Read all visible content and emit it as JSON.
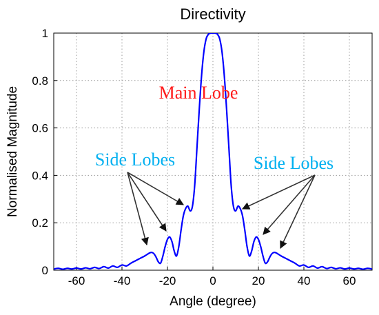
{
  "colors": {
    "series": "#0000ff",
    "main_lobe_label": "#ff1a1a",
    "side_lobe_label": "#00b0f0",
    "arrow": "#333333"
  },
  "chart_data": {
    "type": "line",
    "title": "Directivity",
    "xlabel": "Angle (degree)",
    "ylabel": "Normalised Magnitude",
    "xlim": [
      -70,
      70
    ],
    "ylim": [
      0,
      1
    ],
    "grid": true,
    "xticks": [
      -60,
      -40,
      -20,
      0,
      20,
      40,
      60
    ],
    "yticks": [
      0,
      0.2,
      0.4,
      0.6,
      0.8,
      1
    ],
    "xtick_labels": [
      "-60",
      "-40",
      "-20",
      "0",
      "20",
      "40",
      "60"
    ],
    "ytick_labels": [
      "0",
      "0.2",
      "0.4",
      "0.6",
      "0.8",
      "1"
    ],
    "series": [
      {
        "x": [
          -70,
          -68,
          -66,
          -64,
          -62,
          -60,
          -58,
          -56,
          -54,
          -52,
          -50,
          -48,
          -46,
          -44,
          -42,
          -40,
          -38,
          -36,
          -34,
          -32,
          -30,
          -28,
          -27,
          -26,
          -25,
          -24,
          -23,
          -22,
          -21,
          -20,
          -19,
          -18,
          -17,
          -16,
          -15,
          -14,
          -13,
          -12,
          -11,
          -10,
          -9,
          -8,
          -7,
          -6,
          -5,
          -4,
          -3,
          -2,
          -1,
          0,
          1,
          2,
          3,
          4,
          5,
          6,
          7,
          8,
          9,
          10,
          11,
          12,
          13,
          14,
          15,
          16,
          17,
          18,
          19,
          20,
          21,
          22,
          23,
          24,
          25,
          26,
          27,
          28,
          30,
          32,
          34,
          36,
          38,
          40,
          42,
          44,
          46,
          48,
          50,
          52,
          54,
          56,
          58,
          60,
          62,
          64,
          66,
          68,
          70
        ],
        "y": [
          0.005,
          0.008,
          0.004,
          0.008,
          0.005,
          0.009,
          0.005,
          0.01,
          0.006,
          0.012,
          0.007,
          0.015,
          0.009,
          0.018,
          0.012,
          0.022,
          0.018,
          0.03,
          0.04,
          0.05,
          0.06,
          0.072,
          0.075,
          0.07,
          0.055,
          0.035,
          0.03,
          0.06,
          0.1,
          0.13,
          0.14,
          0.12,
          0.08,
          0.06,
          0.1,
          0.17,
          0.23,
          0.26,
          0.27,
          0.25,
          0.27,
          0.36,
          0.52,
          0.68,
          0.82,
          0.92,
          0.975,
          0.995,
          1.0,
          1.0,
          1.0,
          0.995,
          0.975,
          0.92,
          0.82,
          0.68,
          0.52,
          0.36,
          0.27,
          0.25,
          0.27,
          0.26,
          0.23,
          0.17,
          0.1,
          0.06,
          0.08,
          0.12,
          0.14,
          0.13,
          0.1,
          0.06,
          0.03,
          0.035,
          0.055,
          0.07,
          0.075,
          0.072,
          0.06,
          0.05,
          0.04,
          0.03,
          0.018,
          0.022,
          0.012,
          0.018,
          0.009,
          0.015,
          0.007,
          0.012,
          0.006,
          0.01,
          0.005,
          0.009,
          0.005,
          0.008,
          0.004,
          0.008,
          0.005
        ]
      }
    ],
    "annotations": [
      {
        "text": "Main Lobe",
        "kind": "main"
      },
      {
        "text": "Side Lobes",
        "kind": "side"
      },
      {
        "text": "Side Lobes",
        "kind": "side"
      }
    ]
  }
}
